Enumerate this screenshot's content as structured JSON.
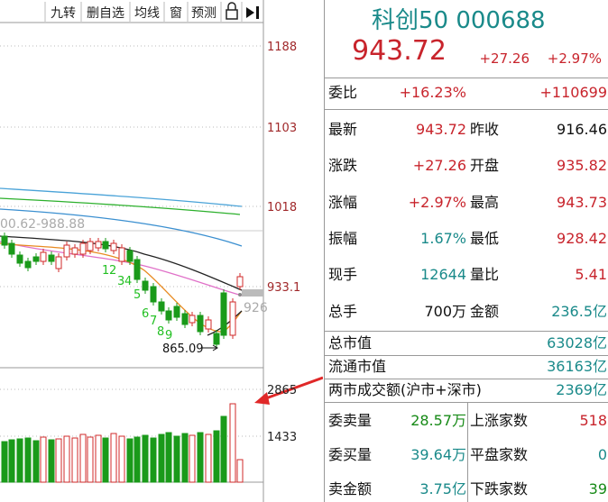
{
  "toolbar": {
    "buttons": [
      "九转",
      "删自选",
      "均线",
      "窗",
      "预测"
    ]
  },
  "chart": {
    "price_labels": [
      "1188",
      "1103",
      "1018",
      "933.1"
    ],
    "volume_labels": [
      "2865",
      "1433"
    ],
    "range_label": "00.62-988.88",
    "low_label": "865.09",
    "count_labels": [
      "1",
      "2",
      "3",
      "4",
      "5",
      "6",
      "7",
      "8",
      "9"
    ],
    "ghost_label": "926"
  },
  "quote": {
    "name": "科创50 000688",
    "price": "943.72",
    "change": "+27.26",
    "change_pct": "+2.97%"
  },
  "order_ratio": {
    "label": "委比",
    "pct": "+16.23%",
    "diff": "+110699"
  },
  "stats": {
    "rows": [
      [
        "最新",
        "943.72",
        "昨收",
        "916.46"
      ],
      [
        "涨跌",
        "+27.26",
        "开盘",
        "935.82"
      ],
      [
        "涨幅",
        "+2.97%",
        "最高",
        "943.73"
      ],
      [
        "振幅",
        "1.67%",
        "最低",
        "928.42"
      ],
      [
        "现手",
        "12644",
        "量比",
        "5.41"
      ],
      [
        "总手",
        "700万",
        "金额",
        "236.5亿"
      ]
    ]
  },
  "market": {
    "rows": [
      [
        "总市值",
        "63028亿"
      ],
      [
        "流通市值",
        "36163亿"
      ],
      [
        "两市成交额(沪市+深市)",
        "2369亿"
      ]
    ]
  },
  "breadth": {
    "rows": [
      [
        "委卖量",
        "28.57万",
        "上涨家数",
        "518"
      ],
      [
        "委买量",
        "39.64万",
        "平盘家数",
        "0"
      ],
      [
        "卖金额",
        "3.75亿",
        "下跌家数",
        "39"
      ]
    ]
  }
}
